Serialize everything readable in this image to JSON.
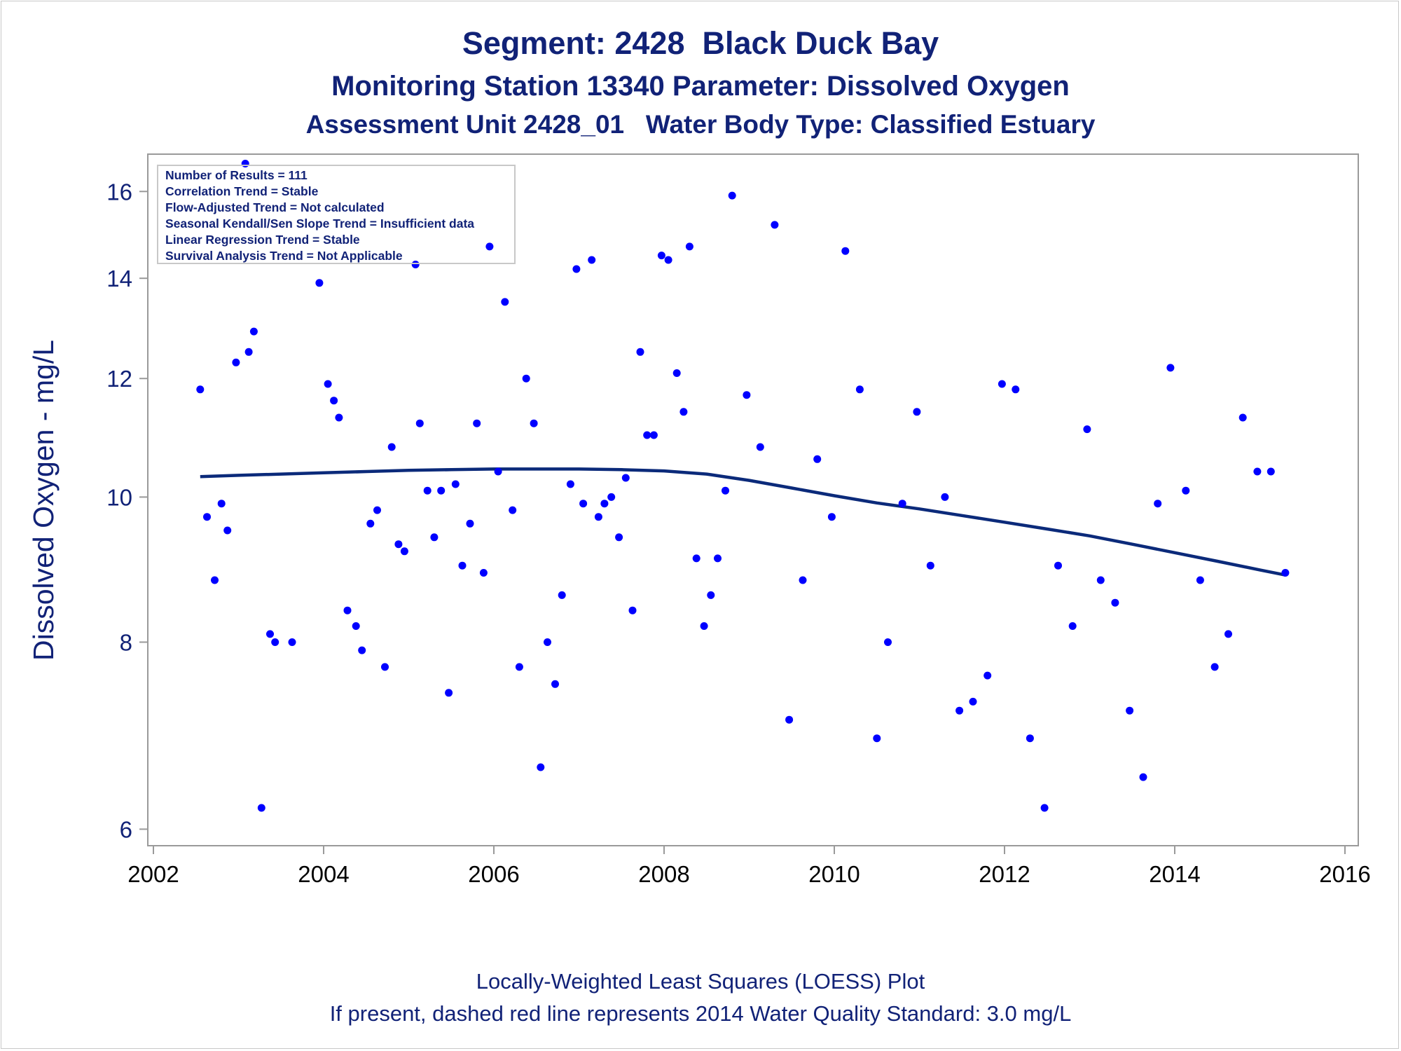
{
  "titles": {
    "line1": "Segment: 2428  Black Duck Bay",
    "line2": "Monitoring Station 13340 Parameter: Dissolved Oxygen",
    "line3": "Assessment Unit 2428_01   Water Body Type: Classified Estuary"
  },
  "footnotes": {
    "line1": "Locally-Weighted Least Squares (LOESS) Plot",
    "line2": "If present, dashed red line represents 2014 Water Quality Standard: 3.0 mg/L"
  },
  "inset": [
    "Number of Results = 111",
    "Correlation Trend = Stable",
    "Flow-Adjusted Trend = Not calculated",
    "Seasonal Kendall/Sen Slope Trend = Insufficient data",
    "Linear Regression Trend = Stable",
    "Survival Analysis Trend = Not Applicable"
  ],
  "colors": {
    "text": "#112277",
    "points": "#0000ff",
    "loess": "#0b2a7a",
    "axis": "#9a9a9a"
  },
  "chart_data": {
    "type": "scatter",
    "ylabel": "Dissolved Oxygen - mg/L",
    "xlabel": "",
    "y_scale": "log",
    "xlim": [
      2002,
      2016
    ],
    "ylim": [
      5.9,
      16.8
    ],
    "x_ticks": [
      2002,
      2004,
      2006,
      2008,
      2010,
      2012,
      2014,
      2016
    ],
    "y_ticks": [
      6,
      8,
      10,
      12,
      14,
      16
    ],
    "grid": false,
    "series": [
      {
        "kind": "scatter",
        "points": [
          [
            2002.55,
            11.8
          ],
          [
            2002.63,
            9.7
          ],
          [
            2002.72,
            8.8
          ],
          [
            2002.8,
            9.9
          ],
          [
            2002.87,
            9.5
          ],
          [
            2002.97,
            12.3
          ],
          [
            2003.12,
            12.5
          ],
          [
            2003.18,
            12.9
          ],
          [
            2003.27,
            6.2
          ],
          [
            2003.37,
            8.1
          ],
          [
            2003.43,
            8.0
          ],
          [
            2003.63,
            8.0
          ],
          [
            2003.95,
            13.9
          ],
          [
            2004.05,
            11.9
          ],
          [
            2004.12,
            11.6
          ],
          [
            2004.18,
            11.3
          ],
          [
            2004.28,
            8.4
          ],
          [
            2004.38,
            8.2
          ],
          [
            2004.45,
            7.9
          ],
          [
            2004.55,
            9.6
          ],
          [
            2004.63,
            9.8
          ],
          [
            2004.72,
            7.7
          ],
          [
            2004.8,
            10.8
          ],
          [
            2004.88,
            9.3
          ],
          [
            2004.95,
            9.2
          ],
          [
            2005.08,
            14.3
          ],
          [
            2005.13,
            11.2
          ],
          [
            2005.22,
            10.1
          ],
          [
            2005.3,
            9.4
          ],
          [
            2005.38,
            10.1
          ],
          [
            2005.47,
            7.4
          ],
          [
            2005.55,
            10.2
          ],
          [
            2005.63,
            9.0
          ],
          [
            2005.72,
            9.6
          ],
          [
            2005.8,
            11.2
          ],
          [
            2005.88,
            8.9
          ],
          [
            2005.95,
            14.7
          ],
          [
            2006.05,
            10.4
          ],
          [
            2006.13,
            13.5
          ],
          [
            2006.22,
            9.8
          ],
          [
            2006.3,
            7.7
          ],
          [
            2006.38,
            12.0
          ],
          [
            2006.47,
            11.2
          ],
          [
            2006.55,
            6.6
          ],
          [
            2006.63,
            8.0
          ],
          [
            2006.72,
            7.5
          ],
          [
            2006.8,
            8.6
          ],
          [
            2006.9,
            10.2
          ],
          [
            2006.97,
            14.2
          ],
          [
            2007.05,
            9.9
          ],
          [
            2007.15,
            14.4
          ],
          [
            2007.23,
            9.7
          ],
          [
            2007.3,
            9.9
          ],
          [
            2007.38,
            10.0
          ],
          [
            2007.47,
            9.4
          ],
          [
            2007.55,
            10.3
          ],
          [
            2007.63,
            8.4
          ],
          [
            2007.72,
            12.5
          ],
          [
            2007.8,
            11.0
          ],
          [
            2007.88,
            11.0
          ],
          [
            2007.97,
            14.5
          ],
          [
            2008.05,
            14.4
          ],
          [
            2008.15,
            12.1
          ],
          [
            2008.23,
            11.4
          ],
          [
            2008.3,
            14.7
          ],
          [
            2008.38,
            9.1
          ],
          [
            2008.47,
            8.2
          ],
          [
            2008.55,
            8.6
          ],
          [
            2008.63,
            9.1
          ],
          [
            2008.72,
            10.1
          ],
          [
            2008.8,
            15.9
          ],
          [
            2008.97,
            11.7
          ],
          [
            2009.13,
            10.8
          ],
          [
            2009.3,
            15.2
          ],
          [
            2009.47,
            7.1
          ],
          [
            2009.63,
            8.8
          ],
          [
            2009.8,
            10.6
          ],
          [
            2009.97,
            9.7
          ],
          [
            2010.13,
            14.6
          ],
          [
            2010.5,
            6.9
          ],
          [
            2010.3,
            11.8
          ],
          [
            2010.63,
            8.0
          ],
          [
            2010.8,
            9.9
          ],
          [
            2010.97,
            11.4
          ],
          [
            2011.13,
            9.0
          ],
          [
            2011.3,
            10.0
          ],
          [
            2011.47,
            7.2
          ],
          [
            2011.63,
            7.3
          ],
          [
            2011.8,
            7.6
          ],
          [
            2011.97,
            11.9
          ],
          [
            2012.13,
            11.8
          ],
          [
            2012.3,
            6.9
          ],
          [
            2012.47,
            6.2
          ],
          [
            2012.63,
            9.0
          ],
          [
            2012.8,
            8.2
          ],
          [
            2012.97,
            11.1
          ],
          [
            2013.13,
            8.8
          ],
          [
            2013.3,
            8.5
          ],
          [
            2013.47,
            7.2
          ],
          [
            2013.63,
            6.5
          ],
          [
            2013.8,
            9.9
          ],
          [
            2013.95,
            12.2
          ],
          [
            2014.13,
            10.1
          ],
          [
            2014.3,
            8.8
          ],
          [
            2014.47,
            7.7
          ],
          [
            2014.63,
            8.1
          ],
          [
            2014.8,
            11.3
          ],
          [
            2014.97,
            10.4
          ],
          [
            2015.13,
            10.4
          ],
          [
            2015.3,
            8.9
          ],
          [
            2003.08,
            16.7
          ]
        ]
      },
      {
        "kind": "line",
        "name": "",
        "points": [
          [
            2002.55,
            10.32
          ],
          [
            2003.0,
            10.34
          ],
          [
            2003.5,
            10.36
          ],
          [
            2004.0,
            10.38
          ],
          [
            2004.5,
            10.4
          ],
          [
            2005.0,
            10.42
          ],
          [
            2005.5,
            10.43
          ],
          [
            2006.0,
            10.44
          ],
          [
            2006.5,
            10.44
          ],
          [
            2007.0,
            10.44
          ],
          [
            2007.5,
            10.43
          ],
          [
            2008.0,
            10.41
          ],
          [
            2008.5,
            10.36
          ],
          [
            2009.0,
            10.26
          ],
          [
            2009.5,
            10.14
          ],
          [
            2010.0,
            10.02
          ],
          [
            2010.5,
            9.91
          ],
          [
            2011.0,
            9.82
          ],
          [
            2011.5,
            9.72
          ],
          [
            2012.0,
            9.62
          ],
          [
            2012.5,
            9.52
          ],
          [
            2013.0,
            9.42
          ],
          [
            2013.5,
            9.3
          ],
          [
            2014.0,
            9.18
          ],
          [
            2014.5,
            9.06
          ],
          [
            2015.0,
            8.94
          ],
          [
            2015.3,
            8.87
          ]
        ]
      }
    ]
  }
}
